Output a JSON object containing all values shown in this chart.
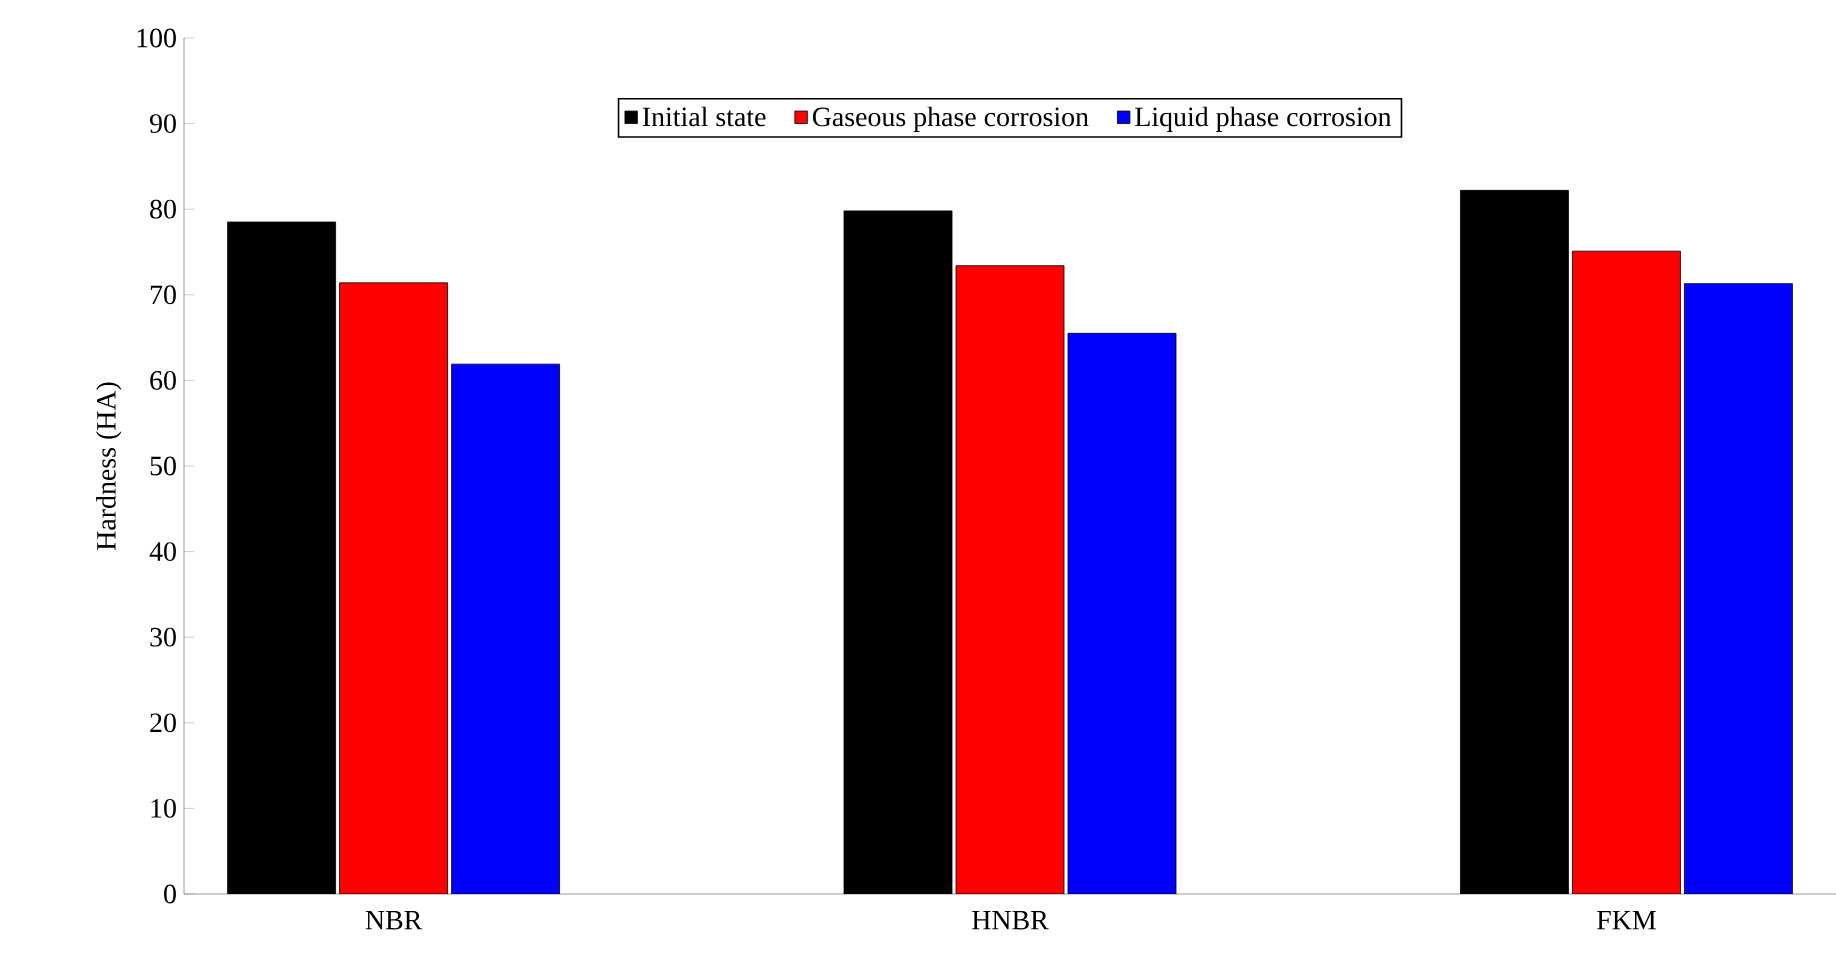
{
  "chart_data": {
    "type": "bar",
    "ylabel": "Hardness (HA)",
    "categories": [
      "NBR",
      "HNBR",
      "FKM"
    ],
    "series": [
      {
        "name": "Initial state",
        "color": "#000000",
        "values": [
          78.5,
          79.8,
          82.2
        ]
      },
      {
        "name": "Gaseous phase corrosion",
        "color": "#ff0000",
        "values": [
          71.4,
          73.4,
          75.1
        ]
      },
      {
        "name": "Liquid phase corrosion",
        "color": "#0000ff",
        "values": [
          61.9,
          65.5,
          71.3
        ]
      }
    ],
    "ylim": [
      0,
      100
    ],
    "yticks": [
      0,
      10,
      20,
      30,
      40,
      50,
      60,
      70,
      80,
      90,
      100
    ],
    "legend": "top"
  }
}
